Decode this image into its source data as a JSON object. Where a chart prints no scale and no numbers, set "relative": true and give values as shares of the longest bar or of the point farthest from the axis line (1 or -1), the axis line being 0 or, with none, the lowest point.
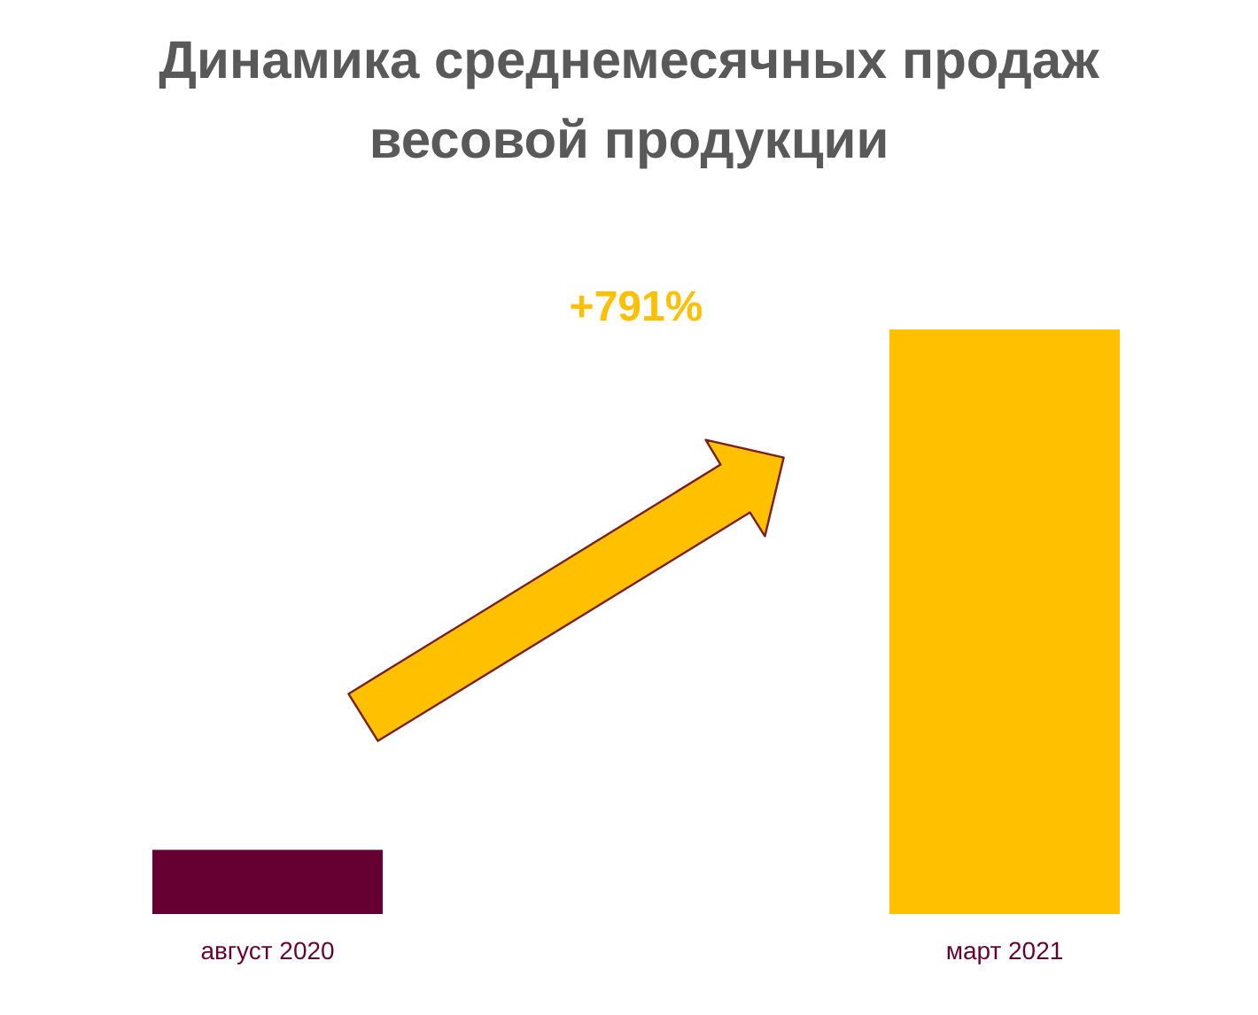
{
  "chart_data": {
    "type": "bar",
    "title": "Динамика среднемесячных продаж весовой продукции",
    "categories": [
      "август 2020",
      "март 2021"
    ],
    "values": [
      0.11,
      1
    ],
    "colors": [
      "#660033",
      "#ffc000"
    ],
    "relative": true,
    "annotations": [
      "+791%"
    ]
  }
}
